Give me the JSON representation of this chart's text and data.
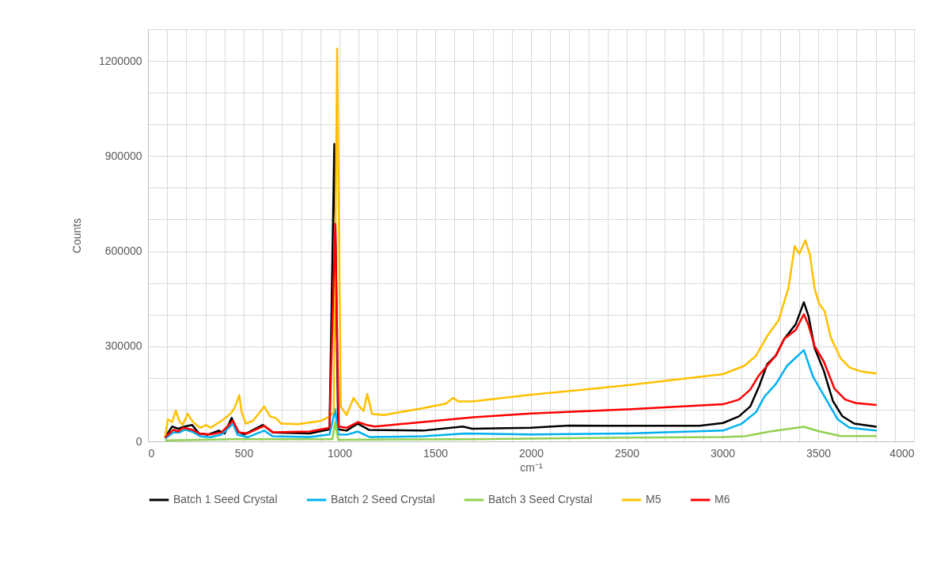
{
  "chart_data": {
    "type": "line",
    "xlabel": "cm⁻¹",
    "ylabel": "Counts",
    "xlim": [
      0,
      4000
    ],
    "xticks": [
      0,
      {
        "value": 100,
        "label": null
      },
      {
        "value": 200,
        "label": null
      },
      {
        "value": 300,
        "label": null
      },
      {
        "value": 400,
        "label": null
      },
      500,
      {
        "value": 600,
        "label": null
      },
      {
        "value": 700,
        "label": null
      },
      {
        "value": 800,
        "label": null
      },
      {
        "value": 900,
        "label": null
      },
      1000,
      {
        "value": 1100,
        "label": null
      },
      {
        "value": 1200,
        "label": null
      },
      {
        "value": 1300,
        "label": null
      },
      {
        "value": 1400,
        "label": null
      },
      1500,
      {
        "value": 1600,
        "label": null
      },
      {
        "value": 1700,
        "label": null
      },
      {
        "value": 1800,
        "label": null
      },
      {
        "value": 1900,
        "label": null
      },
      2000,
      {
        "value": 2100,
        "label": null
      },
      {
        "value": 2200,
        "label": null
      },
      {
        "value": 2300,
        "label": null
      },
      {
        "value": 2400,
        "label": null
      },
      2500,
      {
        "value": 2600,
        "label": null
      },
      {
        "value": 2700,
        "label": null
      },
      {
        "value": 2800,
        "label": null
      },
      {
        "value": 2900,
        "label": null
      },
      3000,
      {
        "value": 3100,
        "label": null
      },
      {
        "value": 3200,
        "label": null
      },
      {
        "value": 3300,
        "label": null
      },
      {
        "value": 3400,
        "label": null
      },
      3500,
      {
        "value": 3600,
        "label": null
      },
      {
        "value": 3700,
        "label": null
      },
      {
        "value": 3800,
        "label": null
      },
      {
        "value": 3900,
        "label": null
      },
      4000
    ],
    "ylim": [
      0,
      1300000
    ],
    "yticks": [
      0,
      {
        "value": 100000,
        "label": null
      },
      {
        "value": 200000,
        "label": null
      },
      300000,
      {
        "value": 400000,
        "label": null
      },
      {
        "value": 500000,
        "label": null
      },
      600000,
      {
        "value": 700000,
        "label": null
      },
      {
        "value": 800000,
        "label": null
      },
      900000,
      {
        "value": 1000000,
        "label": null
      },
      {
        "value": 1100000,
        "label": null
      },
      1200000,
      {
        "value": 1300000,
        "label": null
      }
    ],
    "grid": true,
    "legend": "bottom",
    "marker": "none",
    "line_style": "solid",
    "series": [
      {
        "name": "Batch 1 Seed Crystal",
        "color": "#000000",
        "x": [
          89,
          126,
          156,
          193,
          230,
          267,
          311,
          370,
          400,
          437,
          467,
          504,
          600,
          652,
          844,
          948,
          973,
          993,
          1037,
          1096,
          1156,
          1437,
          1644,
          1693,
          2000,
          2197,
          2504,
          2879,
          3003,
          3086,
          3145,
          3190,
          3234,
          3279,
          3323,
          3382,
          3425,
          3449,
          3481,
          3529,
          3577,
          3625,
          3688,
          3805
        ],
        "values": [
          12000,
          47000,
          40000,
          47000,
          52000,
          25000,
          21000,
          34000,
          25000,
          74000,
          31000,
          22000,
          52000,
          28000,
          25000,
          38000,
          938000,
          38000,
          34000,
          56000,
          36000,
          34000,
          47000,
          40000,
          43000,
          50000,
          49000,
          49000,
          58000,
          79000,
          110000,
          172000,
          244000,
          271000,
          324000,
          369000,
          439000,
          396000,
          295000,
          223000,
          127000,
          80000,
          56000,
          46000
        ]
      },
      {
        "name": "Batch 2 Seed Crystal",
        "color": "#00b0f0",
        "x": [
          89,
          133,
          163,
          193,
          237,
          274,
          326,
          385,
          444,
          467,
          519,
          607,
          652,
          844,
          948,
          978,
          993,
          1037,
          1096,
          1156,
          1437,
          1659,
          2000,
          2504,
          3003,
          3101,
          3175,
          3219,
          3279,
          3338,
          3425,
          3473,
          3537,
          3601,
          3664,
          3805
        ],
        "values": [
          9000,
          29000,
          28000,
          37000,
          29000,
          16000,
          13000,
          22000,
          56000,
          21000,
          13000,
          34000,
          16000,
          14000,
          22000,
          101000,
          22000,
          21000,
          31000,
          14000,
          16000,
          25000,
          22000,
          25000,
          34000,
          56000,
          92000,
          141000,
          181000,
          239000,
          288000,
          204000,
          137000,
          70000,
          43000,
          34000
        ]
      },
      {
        "name": "Batch 3 Seed Crystal",
        "color": "#92d050",
        "x": [
          89,
          444,
          963,
          978,
          993,
          1698,
          2504,
          3003,
          3116,
          3249,
          3425,
          3505,
          3617,
          3805
        ],
        "values": [
          3000,
          7000,
          7000,
          61000,
          5000,
          7000,
          12000,
          14000,
          16000,
          31000,
          46000,
          32000,
          17000,
          17000
        ]
      },
      {
        "name": "M5",
        "color": "#ffc000",
        "x": [
          89,
          104,
          126,
          145,
          163,
          181,
          207,
          230,
          252,
          274,
          304,
          326,
          385,
          430,
          452,
          477,
          489,
          511,
          548,
          607,
          637,
          667,
          696,
          785,
          904,
          948,
          970,
          988,
          1007,
          1037,
          1074,
          1104,
          1126,
          1145,
          1170,
          1230,
          1437,
          1556,
          1593,
          1622,
          1693,
          2000,
          2504,
          3003,
          3116,
          3175,
          3234,
          3293,
          3345,
          3377,
          3401,
          3433,
          3457,
          3481,
          3505,
          3534,
          3565,
          3617,
          3664,
          3728,
          3805
        ],
        "values": [
          12000,
          70000,
          61000,
          98000,
          65000,
          52000,
          87000,
          65000,
          52000,
          43000,
          52000,
          43000,
          65000,
          87000,
          105000,
          146000,
          92000,
          56000,
          65000,
          110000,
          79000,
          74000,
          56000,
          54000,
          65000,
          79000,
          92000,
          1239000,
          110000,
          83000,
          137000,
          110000,
          96000,
          150000,
          87000,
          83000,
          105000,
          119000,
          137000,
          126000,
          126000,
          147000,
          177000,
          212000,
          239000,
          270000,
          333000,
          382000,
          485000,
          616000,
          592000,
          634000,
          588000,
          482000,
          434000,
          410000,
          329000,
          262000,
          233000,
          220000,
          214000
        ]
      },
      {
        "name": "M6",
        "color": "#ff0000",
        "x": [
          89,
          133,
          156,
          185,
          230,
          267,
          326,
          385,
          444,
          474,
          519,
          607,
          652,
          844,
          948,
          978,
          996,
          1037,
          1096,
          1141,
          1185,
          1437,
          1698,
          2000,
          2504,
          3003,
          3086,
          3145,
          3190,
          3234,
          3279,
          3323,
          3382,
          3425,
          3449,
          3481,
          3529,
          3585,
          3641,
          3696,
          3805
        ],
        "values": [
          12000,
          37000,
          31000,
          43000,
          37000,
          25000,
          22000,
          29000,
          65000,
          29000,
          25000,
          49000,
          29000,
          31000,
          43000,
          686000,
          47000,
          43000,
          61000,
          52000,
          47000,
          61000,
          76000,
          88000,
          101000,
          117000,
          132000,
          163000,
          208000,
          239000,
          271000,
          324000,
          351000,
          401000,
          367000,
          300000,
          252000,
          166000,
          132000,
          121000,
          115000
        ]
      }
    ]
  }
}
